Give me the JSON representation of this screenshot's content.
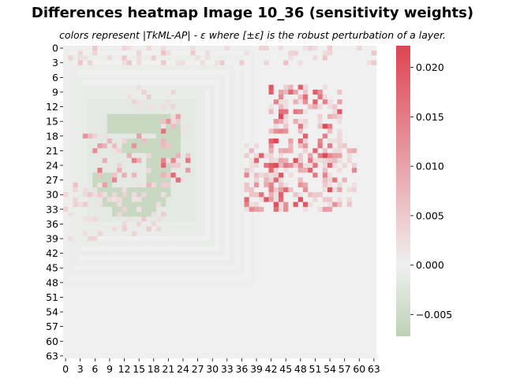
{
  "chart_data": {
    "type": "heatmap",
    "title": "Differences heatmap Image 10_36 (sensitivity weights)",
    "subtitle": "colors represent |TkML-AP| - ε where [±ε] is the robust perturbation of a layer.",
    "x_ticks": [
      "0",
      "3",
      "6",
      "9",
      "12",
      "15",
      "18",
      "21",
      "24",
      "27",
      "30",
      "33",
      "36",
      "39",
      "42",
      "45",
      "48",
      "51",
      "54",
      "57",
      "60",
      "63"
    ],
    "y_ticks": [
      "0",
      "3",
      "6",
      "9",
      "12",
      "15",
      "18",
      "21",
      "24",
      "27",
      "30",
      "33",
      "36",
      "39",
      "42",
      "45",
      "48",
      "51",
      "54",
      "57",
      "60",
      "63"
    ],
    "grid_size": [
      64,
      64
    ],
    "colorbar": {
      "vmin": -0.0072,
      "vmax": 0.0222,
      "ticks": [
        "0.020",
        "0.015",
        "0.010",
        "0.005",
        "0.000",
        "−0.005"
      ],
      "tick_values": [
        0.02,
        0.015,
        0.01,
        0.005,
        0.0,
        -0.005
      ],
      "colors": {
        "low": "#bdd2b5",
        "mid": "#f0f0f0",
        "high": "#de4452"
      }
    },
    "background_value": 0.0,
    "regions": {
      "outer_border_value": -0.0004,
      "digit_glow_value": -0.0009,
      "digit_glow2_value": -0.0016,
      "digit_stroke_value": -0.0057,
      "positive_scatter_low": 0.002,
      "positive_scatter_high": 0.022
    }
  }
}
